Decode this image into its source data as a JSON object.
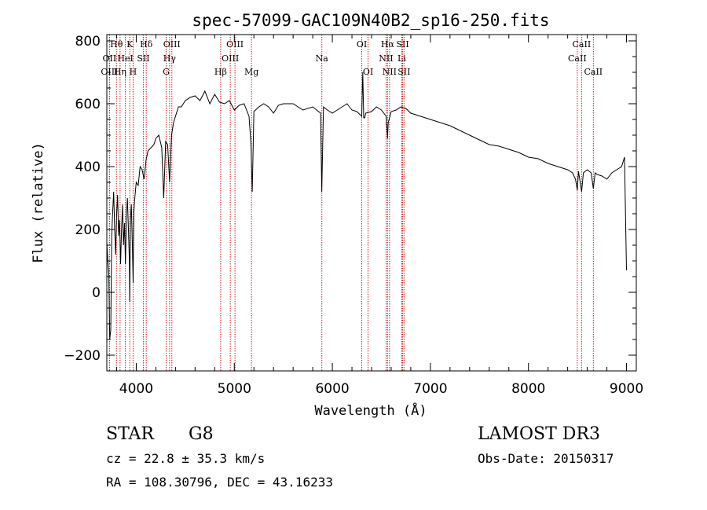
{
  "chart_data": {
    "type": "line",
    "title": "spec-57099-GAC109N40B2_sp16-250.fits",
    "xlabel": "Wavelength (Å)",
    "ylabel": "Flux (relative)",
    "xlim": [
      3700,
      9100
    ],
    "ylim": [
      -250,
      820
    ],
    "xticks": [
      4000,
      5000,
      6000,
      7000,
      8000,
      9000
    ],
    "yticks": [
      -200,
      0,
      200,
      400,
      600,
      800
    ],
    "xtick_labels": [
      "4000",
      "5000",
      "6000",
      "7000",
      "8000",
      "9000"
    ],
    "ytick_labels": [
      "−200",
      "0",
      "200",
      "400",
      "600",
      "800"
    ],
    "series": [
      {
        "name": "flux",
        "x": [
          3700,
          3710,
          3720,
          3730,
          3740,
          3750,
          3760,
          3770,
          3780,
          3790,
          3800,
          3810,
          3820,
          3830,
          3840,
          3850,
          3860,
          3870,
          3880,
          3890,
          3900,
          3910,
          3920,
          3930,
          3933,
          3940,
          3950,
          3960,
          3968,
          3975,
          3985,
          4000,
          4020,
          4040,
          4060,
          4080,
          4100,
          4120,
          4150,
          4180,
          4200,
          4230,
          4260,
          4280,
          4300,
          4320,
          4340,
          4360,
          4380,
          4400,
          4430,
          4460,
          4500,
          4550,
          4600,
          4650,
          4700,
          4750,
          4800,
          4850,
          4900,
          4950,
          5000,
          5050,
          5100,
          5150,
          5170,
          5183,
          5200,
          5250,
          5300,
          5350,
          5400,
          5450,
          5500,
          5600,
          5700,
          5800,
          5880,
          5892,
          5910,
          5950,
          6000,
          6050,
          6100,
          6150,
          6200,
          6250,
          6300,
          6310,
          6320,
          6330,
          6340,
          6400,
          6450,
          6500,
          6550,
          6563,
          6570,
          6600,
          6650,
          6700,
          6750,
          6800,
          6900,
          7000,
          7100,
          7200,
          7300,
          7400,
          7500,
          7600,
          7700,
          7800,
          7900,
          8000,
          8100,
          8200,
          8300,
          8400,
          8450,
          8480,
          8498,
          8510,
          8542,
          8560,
          8600,
          8640,
          8662,
          8680,
          8700,
          8750,
          8800,
          8850,
          8900,
          8950,
          8980,
          9000
        ],
        "y": [
          160,
          100,
          60,
          -150,
          -120,
          180,
          260,
          320,
          200,
          120,
          250,
          310,
          180,
          230,
          90,
          200,
          280,
          150,
          220,
          90,
          250,
          300,
          200,
          100,
          -30,
          230,
          280,
          150,
          30,
          250,
          300,
          350,
          340,
          400,
          390,
          360,
          420,
          450,
          460,
          470,
          490,
          500,
          460,
          300,
          480,
          470,
          350,
          500,
          540,
          560,
          590,
          590,
          610,
          620,
          625,
          610,
          640,
          600,
          630,
          605,
          600,
          610,
          580,
          595,
          600,
          560,
          470,
          320,
          575,
          590,
          600,
          590,
          570,
          595,
          600,
          600,
          580,
          590,
          570,
          320,
          590,
          580,
          570,
          580,
          590,
          600,
          580,
          575,
          560,
          700,
          555,
          555,
          570,
          575,
          590,
          580,
          560,
          490,
          540,
          575,
          580,
          590,
          585,
          570,
          560,
          550,
          540,
          530,
          515,
          500,
          485,
          470,
          465,
          455,
          445,
          430,
          425,
          410,
          400,
          390,
          380,
          360,
          325,
          385,
          320,
          380,
          390,
          380,
          330,
          380,
          375,
          370,
          360,
          380,
          390,
          400,
          430,
          70
        ]
      }
    ],
    "lines": [
      {
        "name": "Hθ",
        "wl": 3798,
        "row": 0
      },
      {
        "name": "K",
        "wl": 3934,
        "row": 0
      },
      {
        "name": "Hδ",
        "wl": 4102,
        "row": 0
      },
      {
        "name": "OIII",
        "wl": 4363,
        "row": 0
      },
      {
        "name": "OIII",
        "wl": 5007,
        "row": 0
      },
      {
        "name": "OI",
        "wl": 6300,
        "row": 0
      },
      {
        "name": "Hα",
        "wl": 6563,
        "row": 0
      },
      {
        "name": "SII",
        "wl": 6717,
        "row": 0
      },
      {
        "name": "CaII",
        "wl": 8542,
        "row": 0
      },
      {
        "name": "OII",
        "wl": 3727,
        "row": 1
      },
      {
        "name": "HeI",
        "wl": 3889,
        "row": 1
      },
      {
        "name": "SII",
        "wl": 4072,
        "row": 1
      },
      {
        "name": "Hγ",
        "wl": 4340,
        "row": 1
      },
      {
        "name": "OIII",
        "wl": 4959,
        "row": 1
      },
      {
        "name": "Na",
        "wl": 5893,
        "row": 1
      },
      {
        "name": "NII",
        "wl": 6548,
        "row": 1
      },
      {
        "name": "Li",
        "wl": 6708,
        "row": 1
      },
      {
        "name": "CaII",
        "wl": 8498,
        "row": 1
      },
      {
        "name": "OIII",
        "wl": 3727,
        "row": 2
      },
      {
        "name": "Hη",
        "wl": 3835,
        "row": 2
      },
      {
        "name": "H",
        "wl": 3968,
        "row": 2
      },
      {
        "name": "G",
        "wl": 4305,
        "row": 2
      },
      {
        "name": "Hβ",
        "wl": 4861,
        "row": 2
      },
      {
        "name": "Mg",
        "wl": 5175,
        "row": 2
      },
      {
        "name": "OI",
        "wl": 6364,
        "row": 2
      },
      {
        "name": "NII",
        "wl": 6583,
        "row": 2
      },
      {
        "name": "SII",
        "wl": 6731,
        "row": 2
      },
      {
        "name": "CaII",
        "wl": 8662,
        "row": 2
      }
    ]
  },
  "info": {
    "object_class": "STAR",
    "subclass": "G8",
    "cz": "cz = 22.8 ± 35.3 km/s",
    "coords": "RA = 108.30796, DEC =  43.16233",
    "survey": "LAMOST DR3",
    "obs_date": "Obs-Date: 20150317"
  },
  "colors": {
    "line_markers": "#cc1f1f",
    "spectrum": "#000000"
  }
}
